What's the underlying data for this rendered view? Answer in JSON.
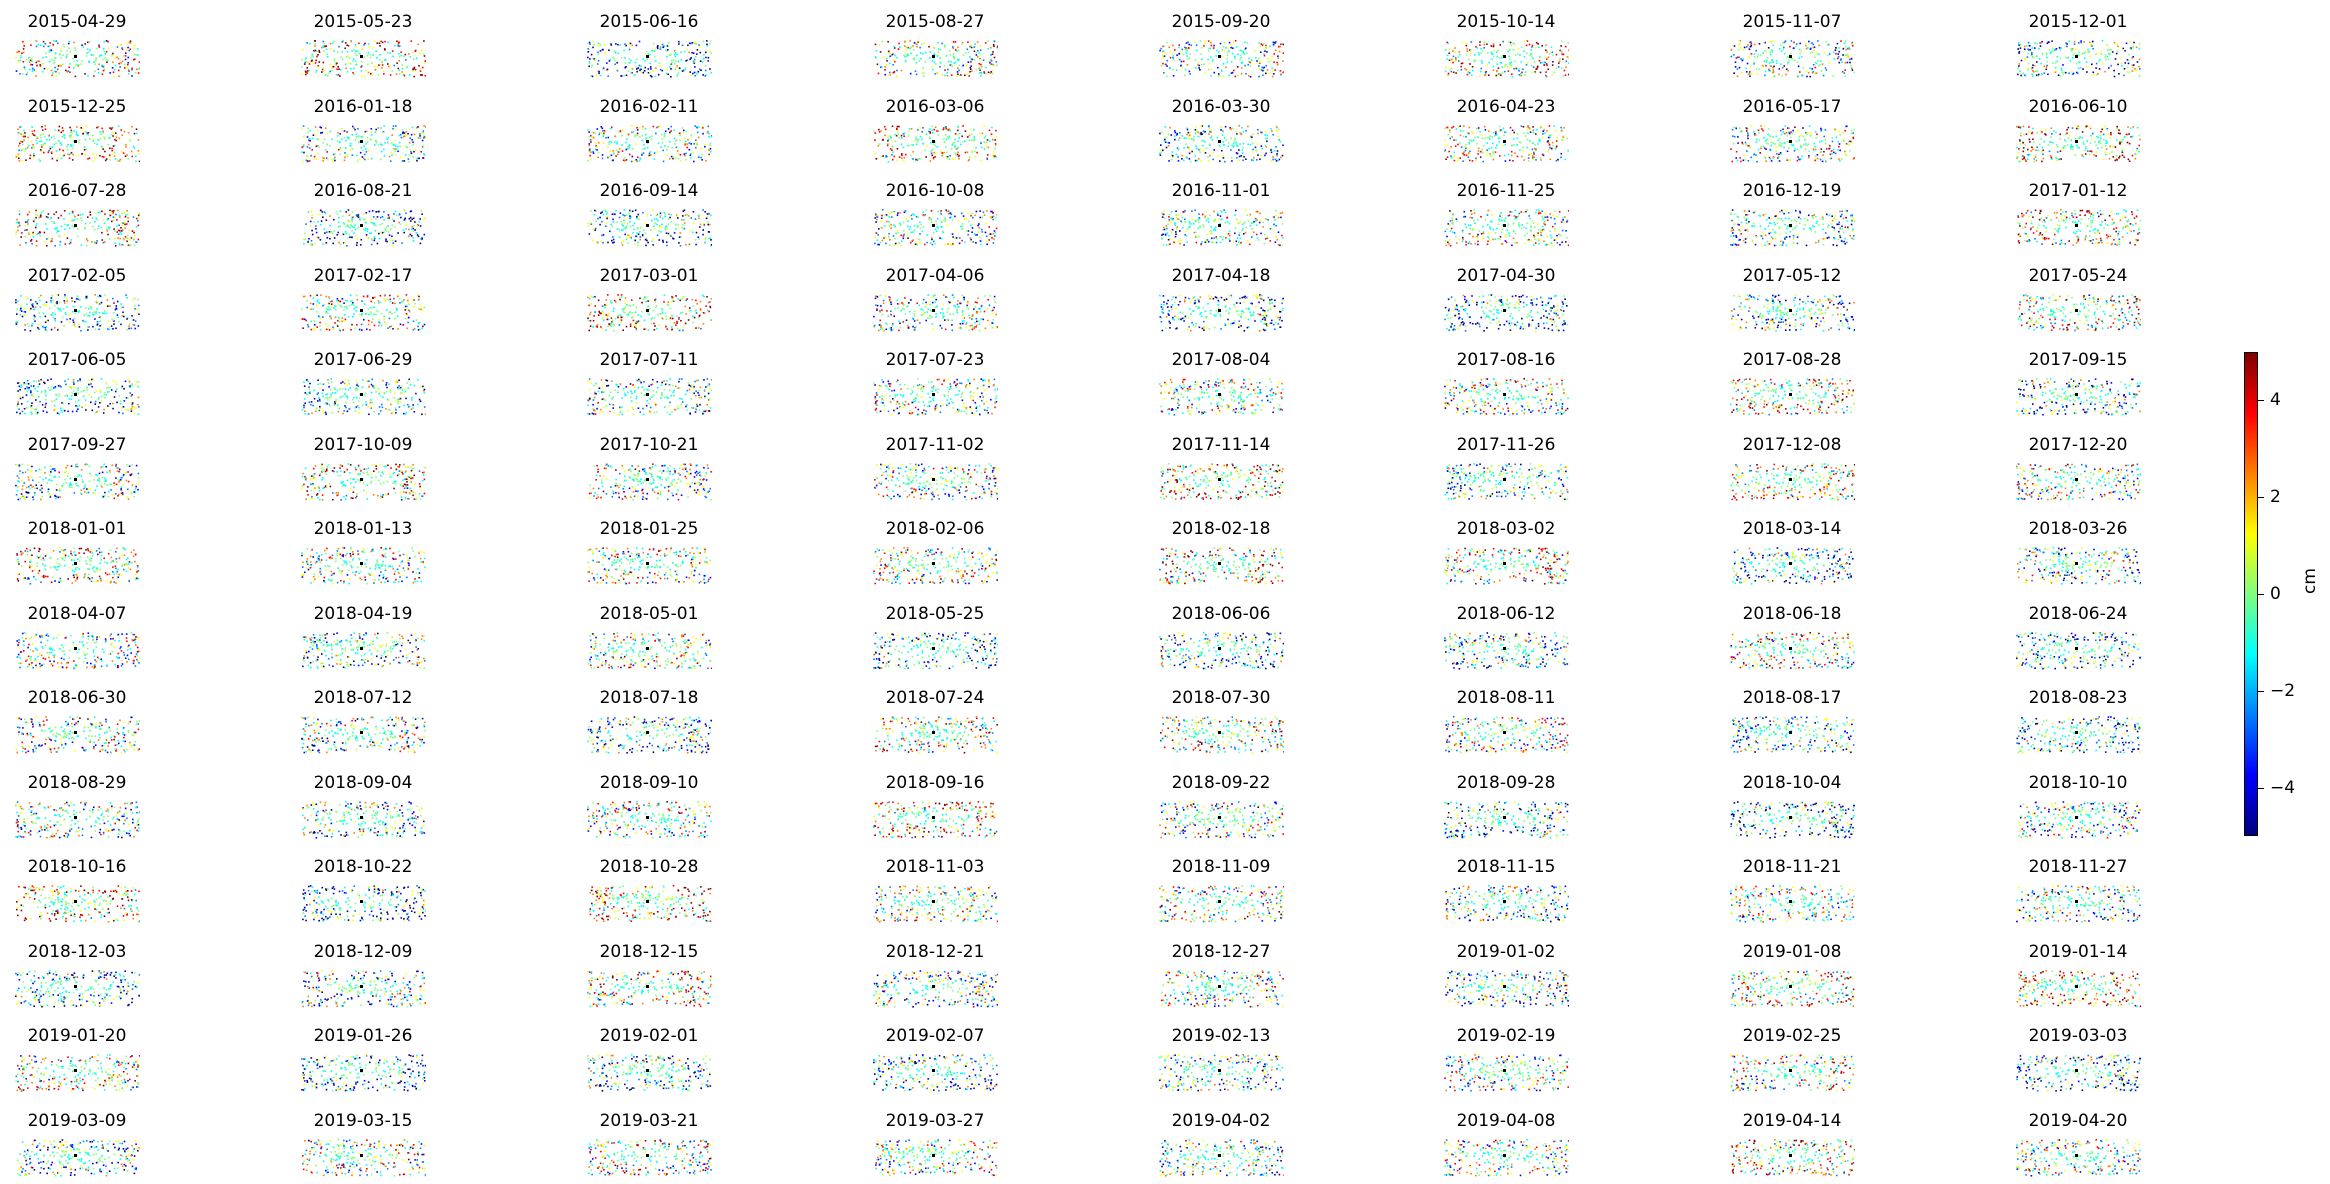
{
  "chart_data": {
    "type": "scatter",
    "subplot_titles": [
      "2015-04-29",
      "2015-05-23",
      "2015-06-16",
      "2015-08-27",
      "2015-09-20",
      "2015-10-14",
      "2015-11-07",
      "2015-12-01",
      "2015-12-25",
      "2016-01-18",
      "2016-02-11",
      "2016-03-06",
      "2016-03-30",
      "2016-04-23",
      "2016-05-17",
      "2016-06-10",
      "2016-07-28",
      "2016-08-21",
      "2016-09-14",
      "2016-10-08",
      "2016-11-01",
      "2016-11-25",
      "2016-12-19",
      "2017-01-12",
      "2017-02-05",
      "2017-02-17",
      "2017-03-01",
      "2017-04-06",
      "2017-04-18",
      "2017-04-30",
      "2017-05-12",
      "2017-05-24",
      "2017-06-05",
      "2017-06-29",
      "2017-07-11",
      "2017-07-23",
      "2017-08-04",
      "2017-08-16",
      "2017-08-28",
      "2017-09-15",
      "2017-09-27",
      "2017-10-09",
      "2017-10-21",
      "2017-11-02",
      "2017-11-14",
      "2017-11-26",
      "2017-12-08",
      "2017-12-20",
      "2018-01-01",
      "2018-01-13",
      "2018-01-25",
      "2018-02-06",
      "2018-02-18",
      "2018-03-02",
      "2018-03-14",
      "2018-03-26",
      "2018-04-07",
      "2018-04-19",
      "2018-05-01",
      "2018-05-25",
      "2018-06-06",
      "2018-06-12",
      "2018-06-18",
      "2018-06-24",
      "2018-06-30",
      "2018-07-12",
      "2018-07-18",
      "2018-07-24",
      "2018-07-30",
      "2018-08-11",
      "2018-08-17",
      "2018-08-23",
      "2018-08-29",
      "2018-09-04",
      "2018-09-10",
      "2018-09-16",
      "2018-09-22",
      "2018-09-28",
      "2018-10-04",
      "2018-10-10",
      "2018-10-16",
      "2018-10-22",
      "2018-10-28",
      "2018-11-03",
      "2018-11-09",
      "2018-11-15",
      "2018-11-21",
      "2018-11-27",
      "2018-12-03",
      "2018-12-09",
      "2018-12-15",
      "2018-12-21",
      "2018-12-27",
      "2019-01-02",
      "2019-01-08",
      "2019-01-14",
      "2019-01-20",
      "2019-01-26",
      "2019-02-01",
      "2019-02-07",
      "2019-02-13",
      "2019-02-19",
      "2019-02-25",
      "2019-03-03",
      "2019-03-09",
      "2019-03-15",
      "2019-03-21",
      "2019-03-27",
      "2019-04-02",
      "2019-04-08",
      "2019-04-14",
      "2019-04-20"
    ],
    "grid": false,
    "colorbar": {
      "label": "cm",
      "ticks": [
        4,
        2,
        0,
        -2,
        -4
      ],
      "tick_labels": [
        "4",
        "2",
        "0",
        "−2",
        "−4"
      ],
      "range": [
        -5,
        5
      ],
      "colormap": "jet",
      "placement": "right"
    },
    "colormap_stops": [
      "#00007f",
      "#0000ff",
      "#007fff",
      "#00ffff",
      "#7fff7f",
      "#ffff00",
      "#ff7f00",
      "#ff0000",
      "#7f0000"
    ]
  }
}
